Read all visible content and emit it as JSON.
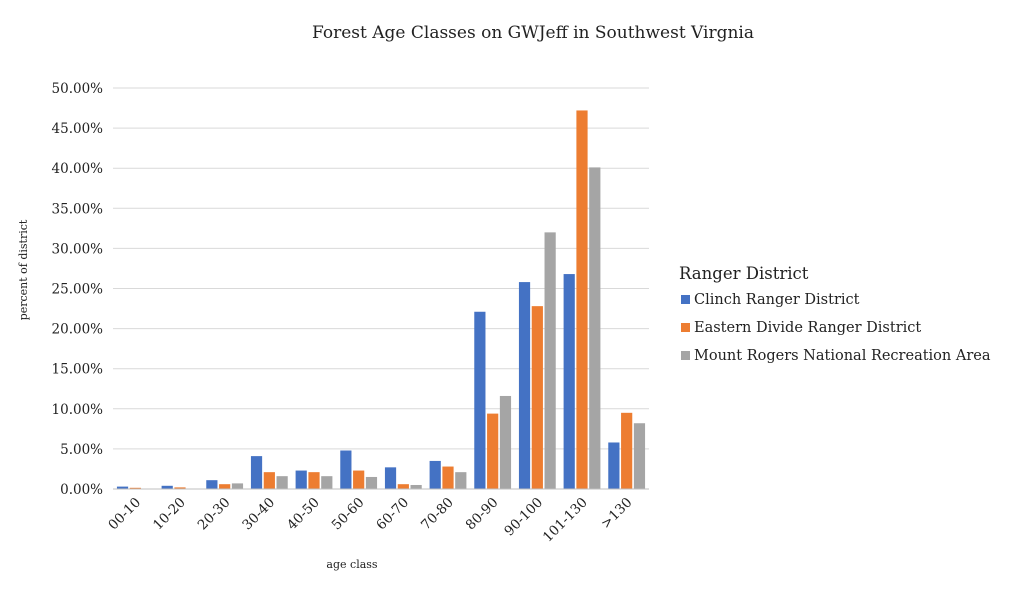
{
  "chart_data": {
    "type": "bar",
    "title": "Forest Age Classes on GWJeff in Southwest Virgnia",
    "xlabel": "age class",
    "ylabel": "percent of district",
    "categories": [
      "00-10",
      "10-20",
      "20-30",
      "30-40",
      "40-50",
      "50-60",
      "60-70",
      "70-80",
      "80-90",
      "90-100",
      "101-130",
      ">130"
    ],
    "ylim": [
      0,
      0.5
    ],
    "yticks": [
      "0.00%",
      "5.00%",
      "10.00%",
      "15.00%",
      "20.00%",
      "25.00%",
      "30.00%",
      "35.00%",
      "40.00%",
      "45.00%",
      "50.00%"
    ],
    "grid": true,
    "legend": {
      "title": "Ranger District",
      "placement": "right"
    },
    "series": [
      {
        "name": "Clinch Ranger District",
        "color": "#4472c4",
        "values": [
          0.003,
          0.004,
          0.011,
          0.041,
          0.023,
          0.048,
          0.027,
          0.035,
          0.221,
          0.258,
          0.268,
          0.058
        ]
      },
      {
        "name": "Eastern Divide Ranger District",
        "color": "#ed7d31",
        "values": [
          0.0015,
          0.002,
          0.006,
          0.021,
          0.021,
          0.023,
          0.006,
          0.028,
          0.094,
          0.228,
          0.472,
          0.095
        ]
      },
      {
        "name": "Mount Rogers National Recreation Area",
        "color": "#a5a5a5",
        "values": [
          0.0005,
          0.0005,
          0.007,
          0.016,
          0.016,
          0.015,
          0.005,
          0.021,
          0.116,
          0.32,
          0.401,
          0.082
        ]
      }
    ]
  }
}
